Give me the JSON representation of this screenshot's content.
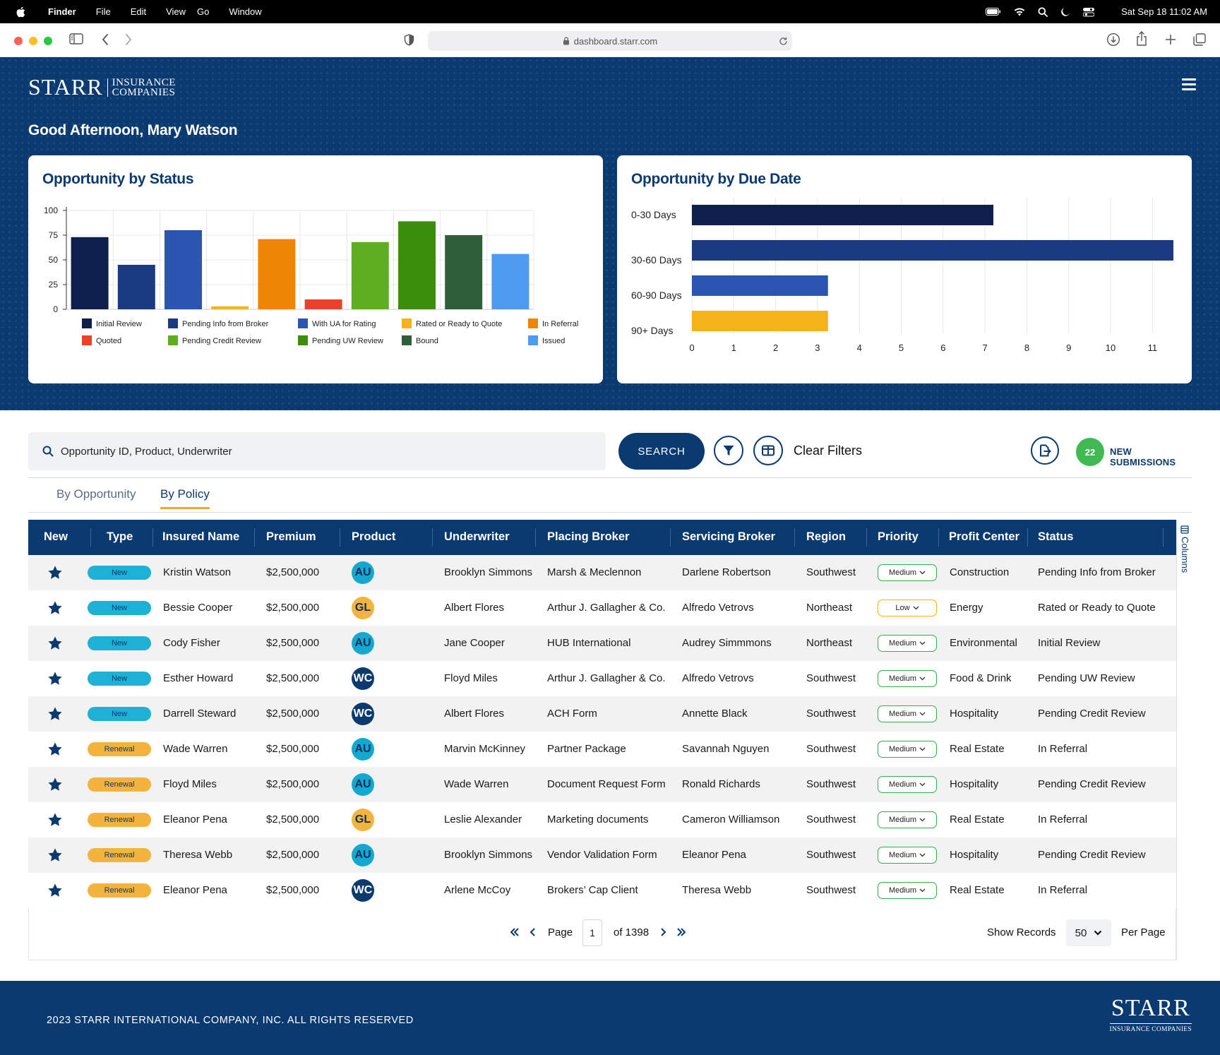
{
  "menubar": {
    "app": "Finder",
    "items": [
      "File",
      "Edit",
      "View",
      "Go",
      "Window"
    ],
    "datetime": "Sat Sep 18  11:02 AM"
  },
  "browser": {
    "url": "dashboard.starr.com"
  },
  "brand": {
    "logo_main": "STARR",
    "logo_sub1": "INSURANCE",
    "logo_sub2": "COMPANIES"
  },
  "greeting": "Good Afternoon, Mary Watson",
  "colors": {
    "navy": "#0b3a70",
    "accent": "#f0a830",
    "green": "#3fba52"
  },
  "chart_status": {
    "title": "Opportunity by Status",
    "chart_data": {
      "type": "bar",
      "categories": [
        "Initial Review",
        "Pending Info from Broker",
        "With UA for Rating",
        "Rated or Ready to Quote",
        "In Referral",
        "Quoted",
        "Pending Credit Review",
        "Pending UW Review",
        "Bound",
        "Issued"
      ],
      "bar_order": [
        "Initial Review",
        "Pending Info from Broker",
        "With UA for Rating",
        "Rated or Ready to Quote",
        "In Referral",
        "Quoted",
        "Pending Credit Review",
        "Pending UW Review",
        "Bound",
        "Issued"
      ],
      "values": [
        73,
        45,
        80,
        3,
        71,
        10,
        68,
        89,
        75,
        56
      ],
      "colors": [
        "#0d1f4a",
        "#1a3a82",
        "#2b55b3",
        "#f5b31a",
        "#ef8505",
        "#eb4128",
        "#5daf21",
        "#3b8e0c",
        "#2f5e3a",
        "#4f9bef"
      ],
      "ylim": [
        0,
        100
      ],
      "yticks": [
        0,
        25,
        50,
        75,
        100
      ],
      "grid": true,
      "legend": "bottom"
    }
  },
  "chart_due": {
    "title": "Opportunity by Due Date",
    "chart_data": {
      "type": "bar",
      "orientation": "horizontal",
      "categories": [
        "0-30 Days",
        "30-60 Days",
        "60-90 Days",
        "90+ Days"
      ],
      "values": [
        7.2,
        11.5,
        3.25,
        3.25
      ],
      "colors": [
        "#0d1f4a",
        "#1a3a82",
        "#2b55b3",
        "#f5b31a"
      ],
      "xlim": [
        0,
        11.5
      ],
      "xticks": [
        0,
        1,
        2,
        3,
        4,
        5,
        6,
        7,
        8,
        9,
        10,
        11
      ],
      "grid": true
    }
  },
  "toolbar": {
    "search_placeholder": "Opportunity ID, Product, Underwriter",
    "search_label": "SEARCH",
    "clear_filters": "Clear Filters",
    "new_count": "22",
    "new_label": "NEW SUBMISSIONS"
  },
  "tabs": [
    "By Opportunity",
    "By Policy"
  ],
  "columns": [
    "New",
    "Type",
    "Insured Name",
    "Premium",
    "Product",
    "Underwriter",
    "Placing Broker",
    "Servicing Broker",
    "Region",
    "Priority",
    "Profit Center",
    "Status"
  ],
  "columns_toggle": "Columns",
  "rows": [
    {
      "type": "New",
      "insured": "Kristin Watson",
      "premium": "$2,500,000",
      "product": "AU",
      "underwriter": "Brooklyn Simmons",
      "placing": "Marsh & Meclennon",
      "servicing": "Darlene Robertson",
      "region": "Southwest",
      "priority": "Medium",
      "profit": "Construction",
      "status": "Pending Info from Broker"
    },
    {
      "type": "New",
      "insured": "Bessie Cooper",
      "premium": "$2,500,000",
      "product": "GL",
      "underwriter": "Albert Flores",
      "placing": "Arthur J. Gallagher & Co.",
      "servicing": "Alfredo Vetrovs",
      "region": "Northeast",
      "priority": "Low",
      "profit": "Energy",
      "status": "Rated or Ready to Quote"
    },
    {
      "type": "New",
      "insured": "Cody Fisher",
      "premium": "$2,500,000",
      "product": "AU",
      "underwriter": "Jane Cooper",
      "placing": "HUB International",
      "servicing": "Audrey Simmmons",
      "region": "Northeast",
      "priority": "Medium",
      "profit": "Environmental",
      "status": "Initial Review"
    },
    {
      "type": "New",
      "insured": "Esther Howard",
      "premium": "$2,500,000",
      "product": "WC",
      "underwriter": "Floyd Miles",
      "placing": "Arthur J. Gallagher & Co.",
      "servicing": "Alfredo Vetrovs",
      "region": "Southwest",
      "priority": "Medium",
      "profit": "Food & Drink",
      "status": "Pending UW Review"
    },
    {
      "type": "New",
      "insured": "Darrell Steward",
      "premium": "$2,500,000",
      "product": "WC",
      "underwriter": "Albert Flores",
      "placing": "ACH Form",
      "servicing": "Annette Black",
      "region": "Southwest",
      "priority": "Medium",
      "profit": "Hospitality",
      "status": "Pending Credit Review"
    },
    {
      "type": "Renewal",
      "insured": "Wade Warren",
      "premium": "$2,500,000",
      "product": "AU",
      "underwriter": "Marvin McKinney",
      "placing": "Partner Package",
      "servicing": "Savannah Nguyen",
      "region": "Southwest",
      "priority": "Medium",
      "profit": "Real Estate",
      "status": "In Referral"
    },
    {
      "type": "Renewal",
      "insured": "Floyd Miles",
      "premium": "$2,500,000",
      "product": "AU",
      "underwriter": "Wade Warren",
      "placing": "Document Request Form",
      "servicing": "Ronald Richards",
      "region": "Southwest",
      "priority": "Medium",
      "profit": "Hospitality",
      "status": "Pending Credit Review"
    },
    {
      "type": "Renewal",
      "insured": "Eleanor Pena",
      "premium": "$2,500,000",
      "product": "GL",
      "underwriter": "Leslie Alexander",
      "placing": "Marketing documents",
      "servicing": "Cameron Williamson",
      "region": "Southwest",
      "priority": "Medium",
      "profit": "Real Estate",
      "status": "In Referral"
    },
    {
      "type": "Renewal",
      "insured": "Theresa Webb",
      "premium": "$2,500,000",
      "product": "AU",
      "underwriter": "Brooklyn Simmons",
      "placing": "Vendor Validation Form",
      "servicing": "Eleanor Pena",
      "region": "Southwest",
      "priority": "Medium",
      "profit": "Hospitality",
      "status": "Pending Credit Review"
    },
    {
      "type": "Renewal",
      "insured": "Eleanor Pena",
      "premium": "$2,500,000",
      "product": "WC",
      "underwriter": "Arlene McCoy",
      "placing": "Brokers’ Cap Client",
      "servicing": "Theresa Webb",
      "region": "Southwest",
      "priority": "Medium",
      "profit": "Real Estate",
      "status": "In Referral"
    }
  ],
  "pagination": {
    "page_label": "Page",
    "page": "1",
    "of_label": "of 1398",
    "show_label": "Show Records",
    "per": "50",
    "per_label": "Per Page"
  },
  "footer": {
    "copyright": "2023 STARR INTERNATIONAL COMPANY, INC. ALL RIGHTS RESERVED",
    "logo_main": "STARR",
    "logo_sub": "INSURANCE COMPANIES"
  }
}
